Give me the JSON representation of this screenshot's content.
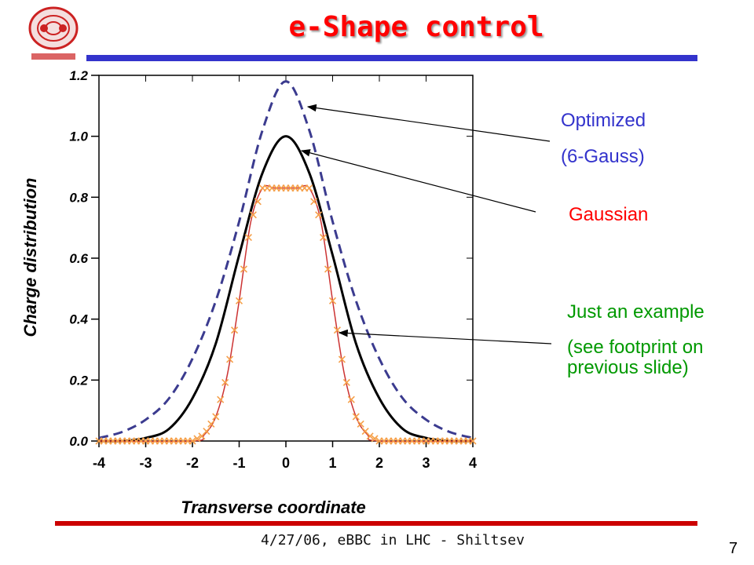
{
  "slide": {
    "title": "e-Shape control",
    "footer": "4/27/06, eBBC in LHC  - Shiltsev",
    "page_number": "7",
    "title_color": "#ff0000",
    "rule_top_color": "#3333cc",
    "rule_bottom_color": "#cc0000"
  },
  "annotations": {
    "optimized_line1": "Optimized",
    "optimized_line2": "(6-Gauss)",
    "gaussian": "Gaussian",
    "example_line1": "Just an example",
    "example_line2": "(see footprint on previous slide)"
  },
  "chart_data": {
    "type": "line",
    "xlabel": "Transverse coordinate",
    "ylabel": "Charge distribution",
    "xlim": [
      -4,
      4
    ],
    "ylim": [
      0,
      1.2
    ],
    "xticks": [
      -4,
      -3,
      -2,
      -1,
      0,
      1,
      2,
      3,
      4
    ],
    "yticks": [
      "0.0",
      "0.2",
      "0.4",
      "0.6",
      "0.8",
      "1.0",
      "1.2"
    ],
    "grid": false,
    "series": [
      {
        "name": "Optimized (6-Gauss)",
        "style": "dashed",
        "color": "#3b3b8f",
        "x": [
          -4,
          -3.5,
          -3,
          -2.5,
          -2,
          -1.5,
          -1,
          -0.5,
          0,
          0.5,
          1,
          1.5,
          2,
          2.5,
          3,
          3.5,
          4
        ],
        "y": [
          0.01,
          0.03,
          0.07,
          0.14,
          0.27,
          0.46,
          0.72,
          1.02,
          1.18,
          1.02,
          0.72,
          0.46,
          0.27,
          0.14,
          0.07,
          0.03,
          0.01
        ]
      },
      {
        "name": "Gaussian",
        "style": "solid",
        "color": "#000000",
        "x": [
          -4,
          -3.5,
          -3,
          -2.5,
          -2,
          -1.5,
          -1,
          -0.5,
          0,
          0.5,
          1,
          1.5,
          2,
          2.5,
          3,
          3.5,
          4
        ],
        "y": [
          0.0,
          0.0,
          0.01,
          0.04,
          0.14,
          0.32,
          0.61,
          0.88,
          1.0,
          0.88,
          0.61,
          0.32,
          0.14,
          0.04,
          0.01,
          0.0,
          0.0
        ]
      },
      {
        "name": "Just an example",
        "style": "line+markers",
        "color": "#cc3333",
        "marker_color": "#f5a04a",
        "x": [
          -4,
          -2.0,
          -1.75,
          -1.5,
          -1.25,
          -1.0,
          -0.75,
          -0.5,
          -0.25,
          0,
          0.25,
          0.5,
          0.75,
          1.0,
          1.25,
          1.5,
          1.75,
          2.0,
          4
        ],
        "y": [
          0.0,
          0.0,
          0.02,
          0.08,
          0.22,
          0.46,
          0.72,
          0.83,
          0.83,
          0.83,
          0.83,
          0.83,
          0.72,
          0.46,
          0.22,
          0.08,
          0.02,
          0.0,
          0.0
        ]
      }
    ]
  }
}
